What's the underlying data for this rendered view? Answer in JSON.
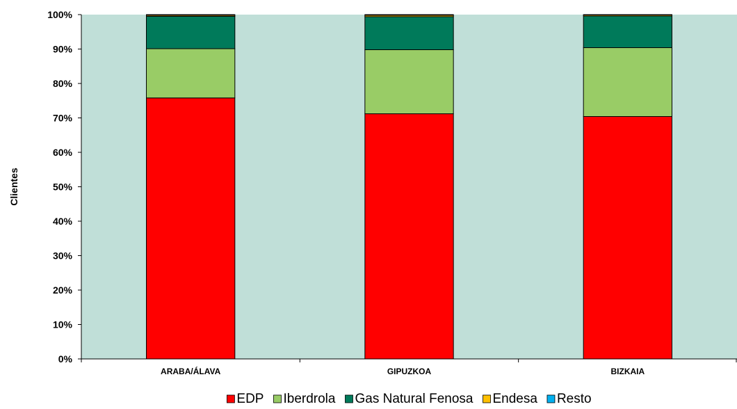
{
  "chart_data": {
    "type": "bar",
    "stacked": true,
    "percent_stacked": true,
    "categories": [
      "ARABA/ÁLAVA",
      "GIPUZKOA",
      "BIZKAIA"
    ],
    "series": [
      {
        "name": "EDP",
        "values": [
          75.8,
          71.2,
          70.4
        ],
        "color": "#ff0000"
      },
      {
        "name": "Iberdrola",
        "values": [
          14.3,
          18.6,
          20.0
        ],
        "color": "#99cc66"
      },
      {
        "name": "Gas Natural Fenosa",
        "values": [
          9.4,
          9.6,
          9.2
        ],
        "color": "#007a5a"
      },
      {
        "name": "Endesa",
        "values": [
          0.3,
          0.4,
          0.3
        ],
        "color": "#ffc000"
      },
      {
        "name": "Resto",
        "values": [
          0.2,
          0.2,
          0.1
        ],
        "color": "#00b0f0"
      }
    ],
    "ylabel": "Clientes",
    "xlabel": "",
    "ylim": [
      0,
      100
    ],
    "yticks": [
      "0%",
      "10%",
      "20%",
      "30%",
      "40%",
      "50%",
      "60%",
      "70%",
      "80%",
      "90%",
      "100%"
    ],
    "grid": false,
    "plot_background": "#c0dfd8",
    "legend_position": "bottom"
  }
}
